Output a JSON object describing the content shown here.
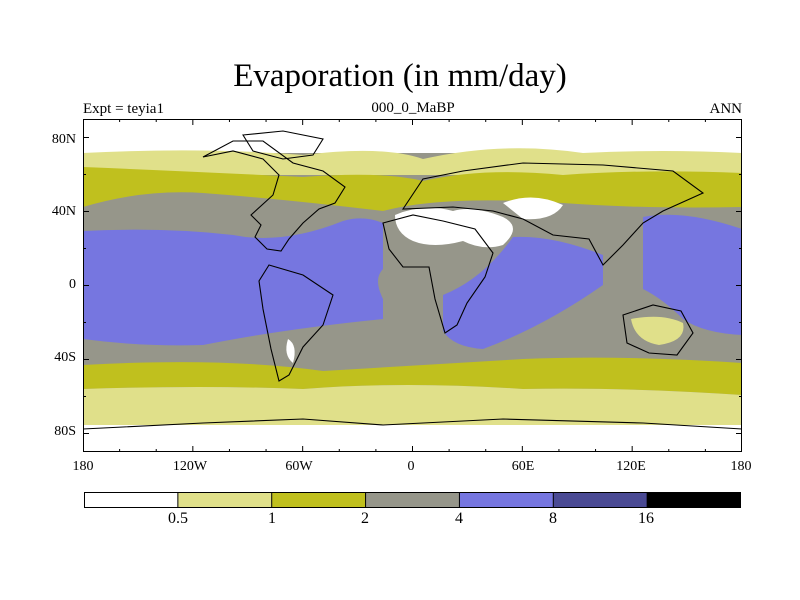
{
  "title": "Evaporation (in mm/day)",
  "subtitle": {
    "left": "Expt = teyia1",
    "center": "000_0_MaBP",
    "right": "ANN"
  },
  "axes": {
    "lat_ticks": [
      "80N",
      "40N",
      "0",
      "40S",
      "80S"
    ],
    "lon_ticks": [
      "180",
      "120W",
      "60W",
      "0",
      "60E",
      "120E",
      "180"
    ]
  },
  "colorbar": {
    "levels": [
      "0.5",
      "1",
      "2",
      "4",
      "8",
      "16"
    ],
    "colors": [
      "#ffffff",
      "#e0e08a",
      "#c0c01e",
      "#96968a",
      "#7676e0",
      "#4a4a94",
      "#000000"
    ]
  },
  "chart_data": {
    "type": "heatmap",
    "title": "Evaporation (in mm/day)",
    "variable": "Evaporation",
    "units": "mm/day",
    "experiment": "Expt = teyia1",
    "period": "000_0_MaBP",
    "season": "ANN",
    "x_range": [
      -180,
      180
    ],
    "y_range": [
      -90,
      90
    ],
    "x_ticks": [
      "180",
      "120W",
      "60W",
      "0",
      "60E",
      "120E",
      "180"
    ],
    "y_ticks": [
      "80N",
      "40N",
      "0",
      "40S",
      "80S"
    ],
    "contour_levels": [
      0.5,
      1,
      2,
      4,
      8,
      16
    ],
    "legend": "bottom"
  }
}
